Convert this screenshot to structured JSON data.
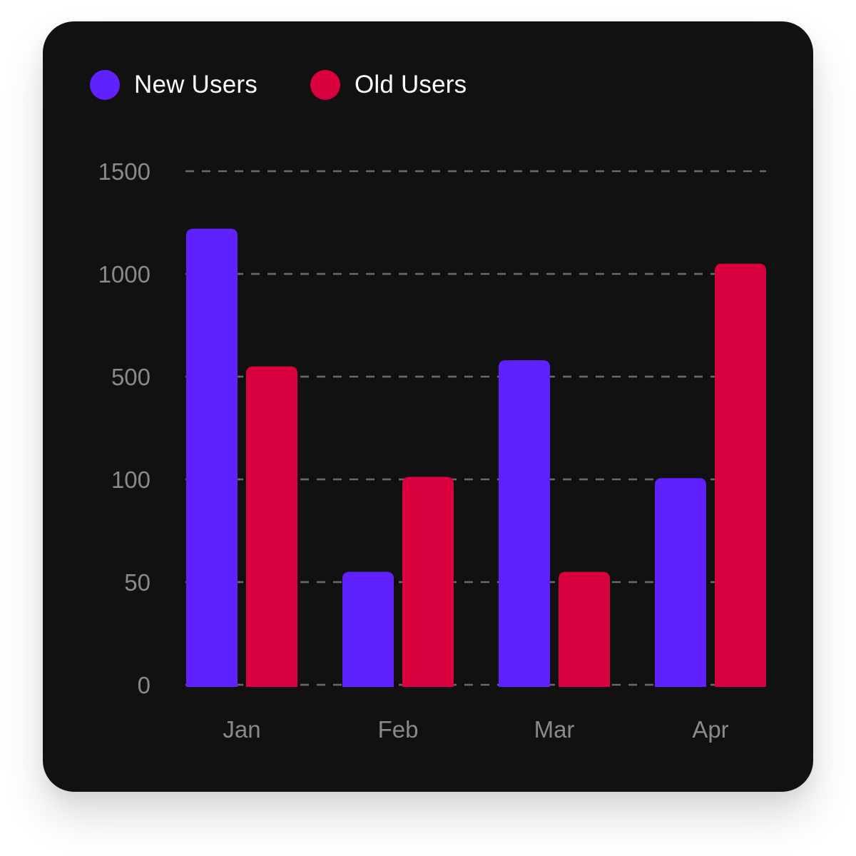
{
  "chart_data": {
    "type": "bar",
    "categories": [
      "Jan",
      "Feb",
      "Mar",
      "Apr"
    ],
    "series": [
      {
        "name": "New Users",
        "color": "#5f22ff",
        "values": [
          1220,
          55,
          580,
          105
        ]
      },
      {
        "name": "Old Users",
        "color": "#d8003f",
        "values": [
          550,
          110,
          55,
          1050
        ]
      }
    ],
    "yticks": [
      0,
      50,
      100,
      500,
      1000,
      1500
    ],
    "ytick_labels": [
      "0",
      "50",
      "100",
      "500",
      "1000",
      "1500"
    ],
    "ylim": [
      0,
      1500
    ],
    "y_scale": "piecewise (equal spacing between ticks 0, 50, 100, 500, 1000, 1500)",
    "grid": true,
    "legend_position": "top-left",
    "title": "",
    "xlabel": "",
    "ylabel": ""
  }
}
